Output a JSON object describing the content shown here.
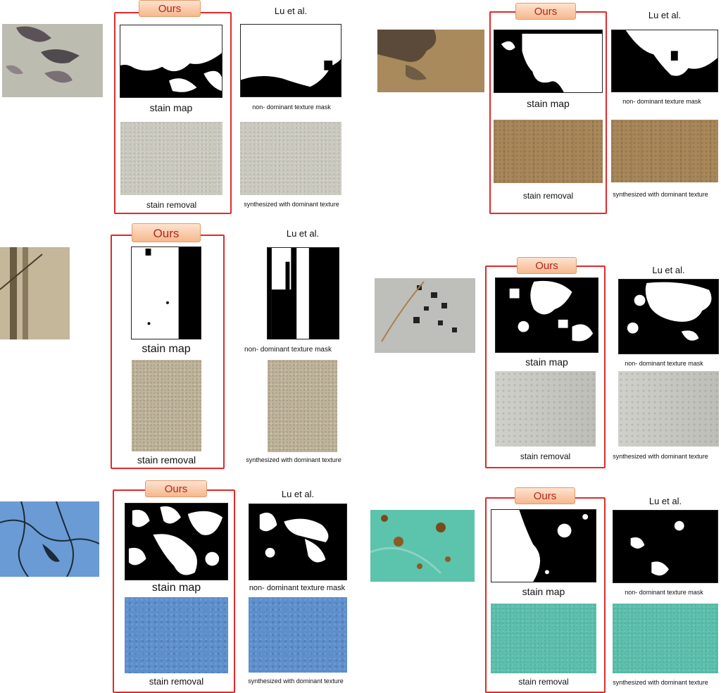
{
  "labels": {
    "ours": "Ours",
    "lu": "Lu et al.",
    "stain_map": "stain map",
    "stain_removal": "stain removal",
    "texture_mask": "non- dominant  texture mask",
    "synthesized": "synthesized with dominant texture"
  },
  "colors": {
    "frame_red": "#e02a2a",
    "tag_text": "#b3261e",
    "tag_bg": "#f6b88d"
  }
}
